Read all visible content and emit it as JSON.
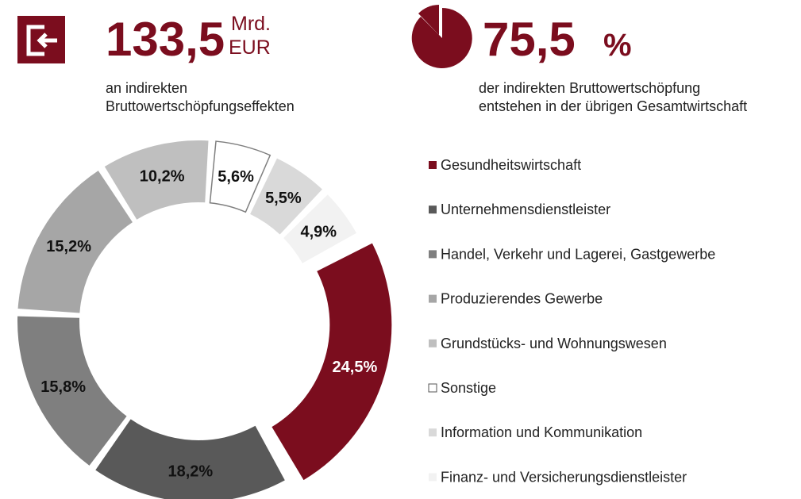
{
  "header": {
    "left": {
      "value": "133,5",
      "unit": [
        "Mrd.",
        "EUR"
      ],
      "caption": [
        "an indirekten",
        "Bruttowertschöpfungseffekten"
      ]
    },
    "right": {
      "value": "75,5",
      "unit": "%",
      "caption": [
        "der indirekten Bruttowertschöpfung",
        "entstehen in der übrigen Gesamtwirtschaft"
      ]
    }
  },
  "chart_data": {
    "type": "donut",
    "categories": [
      "Gesundheitswirtschaft",
      "Unternehmensdienstleister",
      "Handel, Verkehr und Lagerei, Gastgewerbe",
      "Produzierendes Gewerbe",
      "Grundstücks- und Wohnungswesen",
      "Sonstige",
      "Information und Kommunikation",
      "Finanz- und Versicherungsdienstleister"
    ],
    "values": [
      24.5,
      18.2,
      15.8,
      15.2,
      10.2,
      5.6,
      5.5,
      4.9
    ],
    "value_labels": [
      "24,5%",
      "18,2%",
      "15,8%",
      "15,2%",
      "10,2%",
      "5,6%",
      "5,5%",
      "4,9%"
    ],
    "colors": [
      "#7b0d1e",
      "#595959",
      "#7f7f7f",
      "#a6a6a6",
      "#bfbfbf",
      "#ffffff",
      "#d9d9d9",
      "#f2f2f2"
    ]
  }
}
